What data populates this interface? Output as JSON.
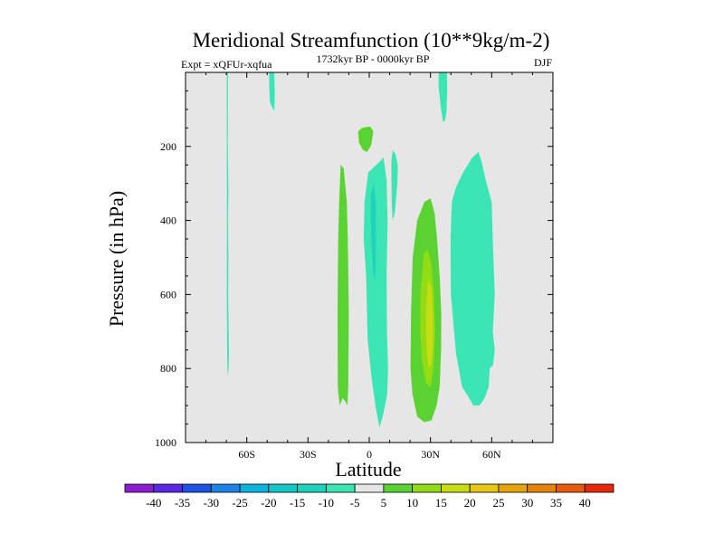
{
  "chart_data": {
    "type": "contour",
    "title": "Meridional Streamfunction (10**9kg/m-2)",
    "subtitle_left": "Expt = xQFUr-xqfua",
    "subtitle_center": "1732kyr BP - 0000kyr BP",
    "subtitle_right": "DJF",
    "xlabel": "Latitude",
    "ylabel": "Pressure (in hPa)",
    "xlim": [
      -90,
      90
    ],
    "ylim": [
      1000,
      0
    ],
    "xticks": [
      -60,
      -30,
      0,
      30,
      60
    ],
    "xtick_labels": [
      "60S",
      "30S",
      "0",
      "30N",
      "60N"
    ],
    "yticks": [
      200,
      400,
      600,
      800,
      1000
    ],
    "ytick_labels": [
      "200",
      "400",
      "600",
      "800",
      "1000"
    ],
    "background_color": "#e6e6e6",
    "colorbar": {
      "labels": [
        "-40",
        "-35",
        "-30",
        "-25",
        "-20",
        "-15",
        "-10",
        "-5",
        "5",
        "10",
        "15",
        "20",
        "25",
        "30",
        "35",
        "40"
      ],
      "colors": [
        "#8c1ed2",
        "#5a28e6",
        "#1e50e6",
        "#1e82e6",
        "#0ab4dc",
        "#14c8c8",
        "#1ed2be",
        "#3ce6b4",
        "#e6e6e6",
        "#5ad232",
        "#91dc14",
        "#c8dc14",
        "#e6c814",
        "#e6a50a",
        "#e6820a",
        "#e65a0a",
        "#e6280a"
      ]
    },
    "regions": [
      {
        "name": "thin-negative-line-70s",
        "level": "-5",
        "color": "#3ce6b4",
        "points": [
          [
            -69.8,
            0
          ],
          [
            -69.2,
            0
          ],
          [
            -69.3,
            200
          ],
          [
            -69.0,
            320
          ],
          [
            -69.2,
            400
          ],
          [
            -69.0,
            500
          ],
          [
            -69.1,
            600
          ],
          [
            -68.7,
            760
          ],
          [
            -68.9,
            800
          ],
          [
            -69.4,
            820
          ],
          [
            -69.6,
            760
          ],
          [
            -69.8,
            600
          ],
          [
            -69.7,
            400
          ],
          [
            -69.8,
            200
          ]
        ]
      },
      {
        "name": "negative-top-50s",
        "level": "-5",
        "color": "#3ce6b4",
        "points": [
          [
            -49,
            0
          ],
          [
            -46.5,
            0
          ],
          [
            -46.3,
            60
          ],
          [
            -46.5,
            105
          ],
          [
            -47.5,
            95
          ],
          [
            -48.7,
            80
          ],
          [
            -49,
            40
          ]
        ]
      },
      {
        "name": "negative-top-35n",
        "level": "-5",
        "color": "#3ce6b4",
        "points": [
          [
            34,
            0
          ],
          [
            38,
            0
          ],
          [
            38.2,
            40
          ],
          [
            37.8,
            110
          ],
          [
            37,
            130
          ],
          [
            36.2,
            135
          ],
          [
            35.2,
            100
          ],
          [
            34,
            40
          ]
        ]
      },
      {
        "name": "positive-upper-0",
        "level": "5",
        "color": "#5ad232",
        "points": [
          [
            -5.5,
            160
          ],
          [
            -3.5,
            150
          ],
          [
            0.5,
            146
          ],
          [
            2,
            160
          ],
          [
            1,
            195
          ],
          [
            -1,
            215
          ],
          [
            -3,
            210
          ],
          [
            -5,
            190
          ]
        ]
      },
      {
        "name": "negative-upper-10n",
        "level": "-5",
        "color": "#3ce6b4",
        "points": [
          [
            10.8,
            240
          ],
          [
            11.5,
            210
          ],
          [
            12.8,
            220
          ],
          [
            14,
            250
          ],
          [
            13.8,
            300
          ],
          [
            12.5,
            380
          ],
          [
            11.5,
            400
          ],
          [
            11,
            350
          ]
        ]
      },
      {
        "name": "positive-15s",
        "level": "5",
        "color": "#5ad232",
        "points": [
          [
            -14,
            250
          ],
          [
            -12.5,
            260
          ],
          [
            -11,
            350
          ],
          [
            -10.5,
            450
          ],
          [
            -10,
            650
          ],
          [
            -10.3,
            850
          ],
          [
            -10.7,
            900
          ],
          [
            -11.5,
            890
          ],
          [
            -13,
            880
          ],
          [
            -14.5,
            900
          ],
          [
            -15.4,
            850
          ],
          [
            -15.5,
            650
          ],
          [
            -15.2,
            450
          ],
          [
            -14.7,
            350
          ]
        ]
      },
      {
        "name": "negative-0-deg",
        "level": "-5",
        "color": "#3ce6b4",
        "points": [
          [
            -0.5,
            270
          ],
          [
            3.5,
            250
          ],
          [
            7,
            230
          ],
          [
            8.5,
            290
          ],
          [
            9,
            400
          ],
          [
            8.5,
            550
          ],
          [
            8.7,
            700
          ],
          [
            9.2,
            800
          ],
          [
            8.8,
            870
          ],
          [
            7,
            920
          ],
          [
            5,
            960
          ],
          [
            3,
            900
          ],
          [
            1,
            820
          ],
          [
            -0.8,
            720
          ],
          [
            -1.5,
            550
          ],
          [
            -2.7,
            450
          ],
          [
            -2.3,
            350
          ]
        ]
      },
      {
        "name": "negative-0-core",
        "level": "-10",
        "color": "#1ed2be",
        "points": [
          [
            0.8,
            330
          ],
          [
            2.2,
            300
          ],
          [
            3.3,
            350
          ],
          [
            3.3,
            500
          ],
          [
            2.8,
            560
          ],
          [
            1.8,
            540
          ],
          [
            1.2,
            470
          ],
          [
            0.8,
            400
          ]
        ]
      },
      {
        "name": "positive-25n",
        "level": "5",
        "color": "#5ad232",
        "points": [
          [
            27,
            350
          ],
          [
            30,
            340
          ],
          [
            32,
            380
          ],
          [
            33.2,
            450
          ],
          [
            34.5,
            550
          ],
          [
            35.3,
            650
          ],
          [
            35.2,
            750
          ],
          [
            34.5,
            850
          ],
          [
            33,
            900
          ],
          [
            30.5,
            940
          ],
          [
            27,
            945
          ],
          [
            23.5,
            930
          ],
          [
            21.2,
            870
          ],
          [
            20.2,
            800
          ],
          [
            20.5,
            650
          ],
          [
            21.3,
            500
          ],
          [
            23.5,
            400
          ]
        ]
      },
      {
        "name": "positive-25n-core-10",
        "level": "10",
        "color": "#91dc14",
        "points": [
          [
            26.7,
            490
          ],
          [
            28.7,
            480
          ],
          [
            30.5,
            520
          ],
          [
            31.7,
            600
          ],
          [
            32.2,
            700
          ],
          [
            31.5,
            800
          ],
          [
            30,
            850
          ],
          [
            27.8,
            840
          ],
          [
            25.8,
            780
          ],
          [
            25,
            700
          ],
          [
            25,
            600
          ]
        ]
      },
      {
        "name": "positive-25n-core-15",
        "level": "15",
        "color": "#c8dc14",
        "points": [
          [
            28.7,
            560
          ],
          [
            30.5,
            580
          ],
          [
            31.2,
            650
          ],
          [
            31.3,
            720
          ],
          [
            30.5,
            790
          ],
          [
            29,
            800
          ],
          [
            28,
            740
          ],
          [
            27.8,
            650
          ]
        ]
      },
      {
        "name": "negative-50n",
        "level": "-5",
        "color": "#3ce6b4",
        "points": [
          [
            50.5,
            230
          ],
          [
            53.5,
            215
          ],
          [
            55,
            240
          ],
          [
            57,
            290
          ],
          [
            60,
            350
          ],
          [
            60.5,
            450
          ],
          [
            61.5,
            600
          ],
          [
            60.5,
            700
          ],
          [
            61.5,
            750
          ],
          [
            60.7,
            790
          ],
          [
            59,
            800
          ],
          [
            58.5,
            850
          ],
          [
            56.5,
            880
          ],
          [
            54,
            900
          ],
          [
            51,
            900
          ],
          [
            49,
            880
          ],
          [
            45.5,
            850
          ],
          [
            42.5,
            760
          ],
          [
            40,
            600
          ],
          [
            39.8,
            450
          ],
          [
            40.5,
            350
          ],
          [
            42.5,
            310
          ],
          [
            46,
            270
          ]
        ]
      }
    ]
  }
}
